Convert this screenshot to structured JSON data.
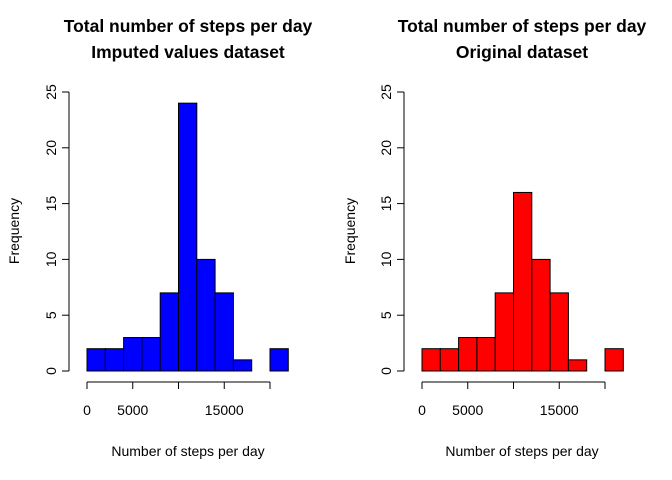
{
  "chart_data": [
    {
      "type": "bar",
      "title": "Total number of steps per day",
      "subtitle": "Imputed values dataset",
      "xlabel": "Number of steps per day",
      "ylabel": "Frequency",
      "bin_edges": [
        0,
        2000,
        4000,
        6000,
        8000,
        10000,
        12000,
        14000,
        16000,
        18000,
        20000,
        22000
      ],
      "values": [
        2,
        2,
        3,
        3,
        7,
        24,
        10,
        7,
        1,
        0,
        2
      ],
      "xticks": [
        0,
        5000,
        15000
      ],
      "xaxis_range": [
        0,
        20000
      ],
      "yticks": [
        0,
        5,
        10,
        15,
        20,
        25
      ],
      "ylim": [
        0,
        25
      ],
      "bar_color": "#0000ff",
      "grid": false,
      "legend": "none"
    },
    {
      "type": "bar",
      "title": "Total number of steps per day",
      "subtitle": "Original dataset",
      "xlabel": "Number of steps per day",
      "ylabel": "Frequency",
      "bin_edges": [
        0,
        2000,
        4000,
        6000,
        8000,
        10000,
        12000,
        14000,
        16000,
        18000,
        20000,
        22000
      ],
      "values": [
        2,
        2,
        3,
        3,
        7,
        16,
        10,
        7,
        1,
        0,
        2
      ],
      "xticks": [
        0,
        5000,
        15000
      ],
      "xaxis_range": [
        0,
        20000
      ],
      "yticks": [
        0,
        5,
        10,
        15,
        20,
        25
      ],
      "ylim": [
        0,
        25
      ],
      "bar_color": "#ff0000",
      "grid": false,
      "legend": "none"
    }
  ]
}
